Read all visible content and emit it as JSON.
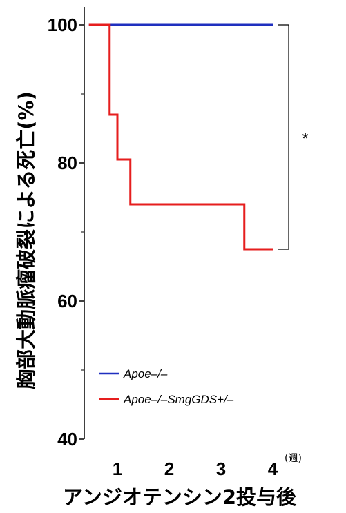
{
  "chart_data": {
    "type": "line",
    "step": true,
    "ylabel": "胸部大動脈瘤破裂による死亡(%)",
    "xlabel": "アンジオテンシン2投与後",
    "x_unit": "(週)",
    "xlim": [
      0,
      4.3
    ],
    "ylim": [
      40,
      102
    ],
    "x_ticks": [
      1,
      2,
      3,
      4
    ],
    "y_ticks": [
      40,
      60,
      80,
      100
    ],
    "y_minor_ticks": [
      50,
      70,
      90
    ],
    "grid": false,
    "legend_position": "bottom-left",
    "series": [
      {
        "name": "Apoe–/–",
        "color": "#1f2fbf",
        "x": [
          0.45,
          4.0
        ],
        "y": [
          100,
          100
        ]
      },
      {
        "name": "Apoe–/–SmgGDS+/–",
        "color": "#e61e1e",
        "x": [
          0.45,
          0.85,
          1.0,
          1.25,
          3.45,
          4.0
        ],
        "y": [
          100,
          87,
          80.5,
          74,
          67.5,
          67.5
        ]
      }
    ],
    "annotations": [
      {
        "text": "*",
        "between_y": [
          100,
          67.5
        ],
        "at_x": 4.0
      }
    ]
  }
}
